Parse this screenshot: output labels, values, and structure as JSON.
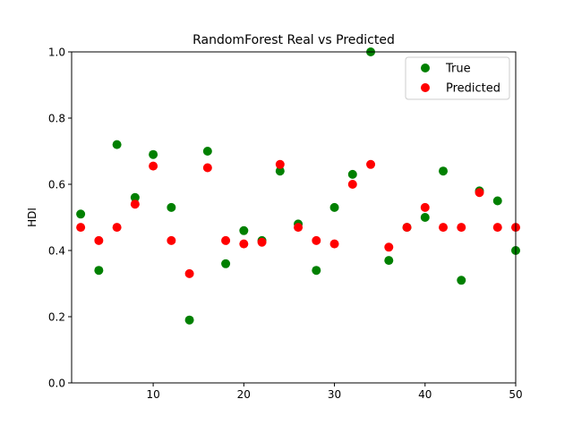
{
  "chart_data": {
    "type": "scatter",
    "title": "RandomForest Real vs Predicted",
    "xlabel": "",
    "ylabel": "HDI",
    "xlim": [
      1,
      50
    ],
    "ylim": [
      0.0,
      1.0
    ],
    "x_ticks": [
      10,
      20,
      30,
      40,
      50
    ],
    "y_ticks": [
      0.0,
      0.2,
      0.4,
      0.6,
      0.8,
      1.0
    ],
    "x_tick_labels": [
      "10",
      "20",
      "30",
      "40",
      "50"
    ],
    "y_tick_labels": [
      "0.0",
      "0.2",
      "0.4",
      "0.6",
      "0.8",
      "1.0"
    ],
    "grid": false,
    "legend_position": "top-right",
    "series": [
      {
        "name": "True",
        "color": "#008000",
        "x": [
          2,
          4,
          6,
          8,
          10,
          12,
          14,
          16,
          18,
          20,
          22,
          24,
          26,
          28,
          30,
          32,
          34,
          36,
          38,
          40,
          42,
          44,
          46,
          48,
          50
        ],
        "y": [
          0.51,
          0.34,
          0.72,
          0.56,
          0.69,
          0.53,
          0.19,
          0.7,
          0.36,
          0.46,
          0.43,
          0.64,
          0.48,
          0.34,
          0.53,
          0.63,
          1.0,
          0.37,
          0.47,
          0.5,
          0.64,
          0.31,
          0.58,
          0.55,
          0.4
        ]
      },
      {
        "name": "Predicted",
        "color": "#ff0000",
        "x": [
          2,
          4,
          6,
          8,
          10,
          12,
          14,
          16,
          18,
          20,
          22,
          24,
          26,
          28,
          30,
          32,
          34,
          36,
          38,
          40,
          42,
          44,
          46,
          48,
          50
        ],
        "y": [
          0.47,
          0.43,
          0.47,
          0.54,
          0.655,
          0.43,
          0.33,
          0.65,
          0.43,
          0.42,
          0.425,
          0.66,
          0.47,
          0.43,
          0.42,
          0.6,
          0.66,
          0.41,
          0.47,
          0.53,
          0.47,
          0.47,
          0.575,
          0.47,
          0.47
        ]
      }
    ]
  }
}
